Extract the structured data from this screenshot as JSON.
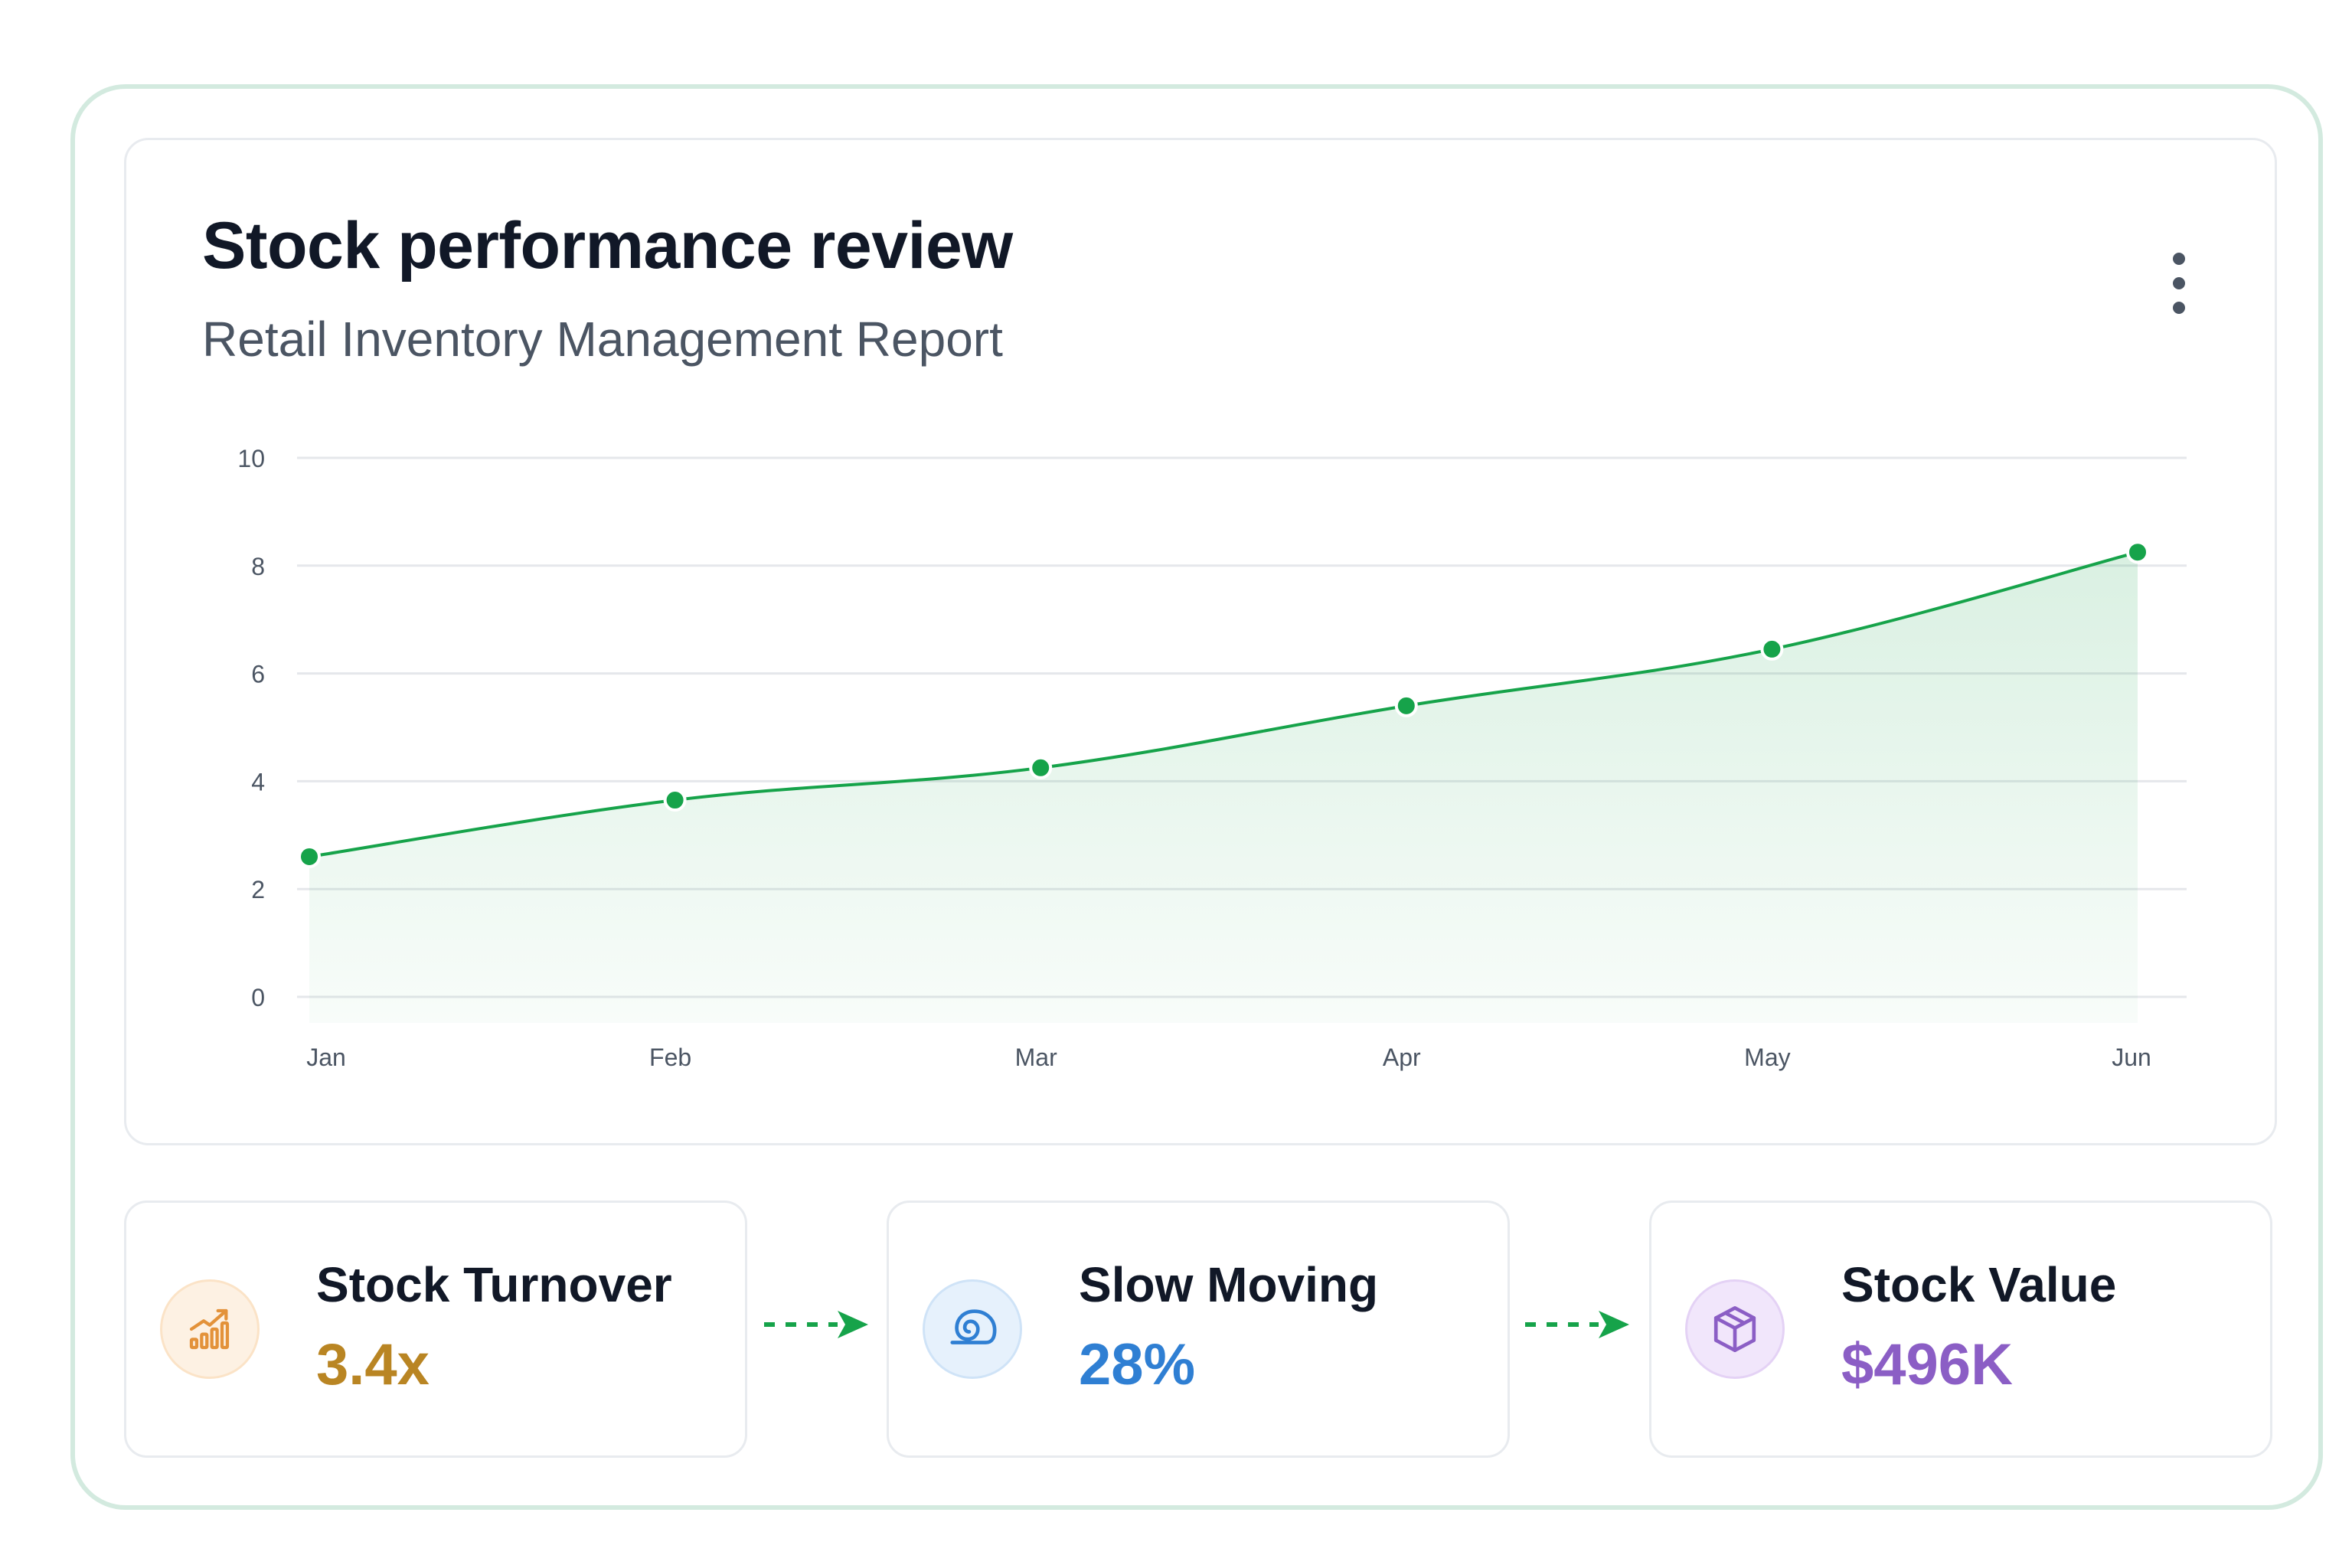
{
  "header": {
    "title": "Stock performance review",
    "subtitle": "Retail Inventory Management Report"
  },
  "chart_data": {
    "type": "area",
    "categories": [
      "Jan",
      "Feb",
      "Mar",
      "Apr",
      "May",
      "Jun"
    ],
    "values": [
      2.6,
      3.65,
      4.25,
      5.4,
      6.45,
      8.25
    ],
    "ylim": [
      0,
      10
    ],
    "yticks": [
      0,
      2,
      4,
      6,
      8,
      10
    ],
    "grid": true,
    "color": "#16a34a"
  },
  "stats": [
    {
      "label": "Stock Turnover",
      "value": "3.4x",
      "color": "#b98523",
      "icon": "bar-chart-trend-icon"
    },
    {
      "label": "Slow Moving",
      "value": "28%",
      "color": "#2f7fd3",
      "icon": "snail-icon"
    },
    {
      "label": "Stock Value",
      "value": "$496K",
      "color": "#8b5ec5",
      "icon": "package-box-icon"
    }
  ]
}
